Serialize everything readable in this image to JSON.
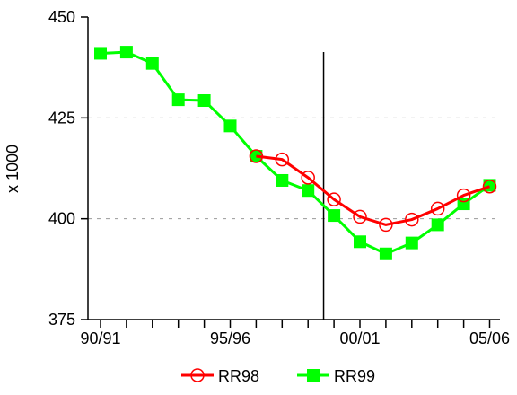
{
  "chart_data": {
    "type": "line",
    "ylabel": "x 1000",
    "ylim": [
      375,
      450
    ],
    "yticks": [
      375,
      400,
      425,
      450
    ],
    "x_count": 16,
    "xtick_labels": [
      {
        "index": 0,
        "label": "90/91"
      },
      {
        "index": 5,
        "label": "95/96"
      },
      {
        "index": 10,
        "label": "00/01"
      },
      {
        "index": 15,
        "label": "05/06"
      }
    ],
    "vertical_marker_index": 8.6,
    "grid": "horizontal-dashed",
    "legend_position": "bottom",
    "series": [
      {
        "name": "RR98",
        "color": "#ff0000",
        "marker": "open-circle",
        "start_index": 6,
        "values": [
          415.5,
          414.7,
          410.2,
          404.8,
          400.5,
          398.5,
          399.8,
          402.5,
          405.8,
          408.0
        ]
      },
      {
        "name": "RR99",
        "color": "#00ff00",
        "marker": "filled-square",
        "start_index": 0,
        "values": [
          441.0,
          441.3,
          438.5,
          429.5,
          429.3,
          423.0,
          415.5,
          409.5,
          407.0,
          400.8,
          394.3,
          391.3,
          394.0,
          398.5,
          403.7,
          408.3
        ]
      }
    ]
  }
}
